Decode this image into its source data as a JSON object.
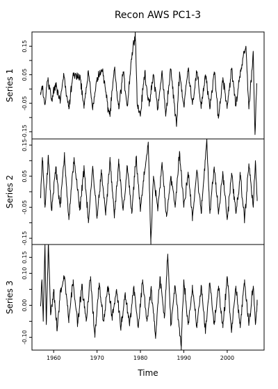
{
  "chart_data": {
    "type": "line",
    "title": "Recon AWS PC1-3",
    "xlabel": "Time",
    "xlim": [
      1955,
      2008.5
    ],
    "x_ticks": [
      1960,
      1970,
      1980,
      1990,
      2000
    ],
    "x_tick_labels": [
      "1960",
      "1970",
      "1980",
      "1990",
      "2000"
    ],
    "x_start": 1957.0,
    "x_step": 0.0833,
    "panels": [
      {
        "ylabel": "Series 1",
        "ylim": [
          -0.175,
          0.2
        ],
        "y_ticks": [
          -0.15,
          -0.1,
          -0.05,
          0,
          0.05,
          0.1,
          0.15
        ],
        "y_tick_labels": [
          "-0.15",
          "",
          "-0.05",
          "",
          "0.05",
          "",
          "0.15"
        ],
        "anchors": [
          {
            "x": 1957.0,
            "y": -0.02
          },
          {
            "x": 1957.3,
            "y": 0.01
          },
          {
            "x": 1958.0,
            "y": -0.055
          },
          {
            "x": 1958.7,
            "y": 0.04
          },
          {
            "x": 1959.5,
            "y": -0.04
          },
          {
            "x": 1960.5,
            "y": 0.02
          },
          {
            "x": 1961.5,
            "y": -0.05
          },
          {
            "x": 1962.3,
            "y": 0.055
          },
          {
            "x": 1963.5,
            "y": -0.07
          },
          {
            "x": 1964.5,
            "y": 0.05
          },
          {
            "x": 1966.0,
            "y": 0.04
          },
          {
            "x": 1967.0,
            "y": -0.06
          },
          {
            "x": 1968.0,
            "y": 0.06
          },
          {
            "x": 1969.0,
            "y": -0.07
          },
          {
            "x": 1970.0,
            "y": 0.04
          },
          {
            "x": 1971.3,
            "y": 0.065
          },
          {
            "x": 1972.5,
            "y": -0.065
          },
          {
            "x": 1973.0,
            "y": -0.09
          },
          {
            "x": 1974.0,
            "y": 0.07
          },
          {
            "x": 1975.0,
            "y": -0.07
          },
          {
            "x": 1976.0,
            "y": 0.06
          },
          {
            "x": 1977.0,
            "y": -0.06
          },
          {
            "x": 1977.8,
            "y": 0.09
          },
          {
            "x": 1978.8,
            "y": 0.2
          },
          {
            "x": 1979.3,
            "y": -0.06
          },
          {
            "x": 1980.0,
            "y": -0.09
          },
          {
            "x": 1981.0,
            "y": 0.06
          },
          {
            "x": 1982.0,
            "y": -0.06
          },
          {
            "x": 1983.0,
            "y": 0.05
          },
          {
            "x": 1984.0,
            "y": -0.07
          },
          {
            "x": 1985.0,
            "y": 0.06
          },
          {
            "x": 1985.8,
            "y": -0.09
          },
          {
            "x": 1987.0,
            "y": 0.07
          },
          {
            "x": 1988.3,
            "y": -0.13
          },
          {
            "x": 1989.0,
            "y": 0.06
          },
          {
            "x": 1990.0,
            "y": -0.06
          },
          {
            "x": 1991.0,
            "y": 0.07
          },
          {
            "x": 1992.0,
            "y": -0.05
          },
          {
            "x": 1993.0,
            "y": 0.06
          },
          {
            "x": 1994.0,
            "y": -0.06
          },
          {
            "x": 1995.0,
            "y": 0.05
          },
          {
            "x": 1996.0,
            "y": -0.07
          },
          {
            "x": 1997.0,
            "y": 0.06
          },
          {
            "x": 1998.0,
            "y": -0.1
          },
          {
            "x": 1999.0,
            "y": 0.04
          },
          {
            "x": 2000.0,
            "y": -0.06
          },
          {
            "x": 2001.0,
            "y": 0.07
          },
          {
            "x": 2002.0,
            "y": -0.06
          },
          {
            "x": 2003.0,
            "y": 0.06
          },
          {
            "x": 2004.3,
            "y": 0.15
          },
          {
            "x": 2005.0,
            "y": -0.07
          },
          {
            "x": 2006.0,
            "y": 0.13
          },
          {
            "x": 2006.4,
            "y": -0.16
          },
          {
            "x": 2006.8,
            "y": 0.02
          }
        ]
      },
      {
        "ylabel": "Series 2",
        "ylim": [
          -0.17,
          0.17
        ],
        "y_ticks": [
          -0.15,
          -0.1,
          -0.05,
          0,
          0.05,
          0.1,
          0.15
        ],
        "y_tick_labels": [
          "-0.15",
          "",
          "-0.05",
          "",
          "0.05",
          "",
          "0.15"
        ],
        "anchors": [
          {
            "x": 1957.0,
            "y": -0.02
          },
          {
            "x": 1957.4,
            "y": 0.11
          },
          {
            "x": 1958.0,
            "y": -0.05
          },
          {
            "x": 1958.8,
            "y": 0.11
          },
          {
            "x": 1959.5,
            "y": -0.06
          },
          {
            "x": 1960.5,
            "y": 0.08
          },
          {
            "x": 1961.5,
            "y": -0.05
          },
          {
            "x": 1962.5,
            "y": 0.12
          },
          {
            "x": 1963.5,
            "y": -0.09
          },
          {
            "x": 1964.7,
            "y": 0.11
          },
          {
            "x": 1966.0,
            "y": -0.06
          },
          {
            "x": 1967.0,
            "y": 0.08
          },
          {
            "x": 1968.0,
            "y": -0.1
          },
          {
            "x": 1969.0,
            "y": 0.08
          },
          {
            "x": 1970.0,
            "y": -0.08
          },
          {
            "x": 1971.0,
            "y": 0.06
          },
          {
            "x": 1972.0,
            "y": -0.07
          },
          {
            "x": 1973.0,
            "y": 0.1
          },
          {
            "x": 1974.0,
            "y": -0.08
          },
          {
            "x": 1975.0,
            "y": 0.09
          },
          {
            "x": 1976.0,
            "y": -0.06
          },
          {
            "x": 1977.0,
            "y": 0.08
          },
          {
            "x": 1978.0,
            "y": -0.07
          },
          {
            "x": 1979.0,
            "y": 0.11
          },
          {
            "x": 1980.0,
            "y": -0.06
          },
          {
            "x": 1981.0,
            "y": 0.07
          },
          {
            "x": 1981.8,
            "y": 0.16
          },
          {
            "x": 1982.4,
            "y": -0.17
          },
          {
            "x": 1983.0,
            "y": 0.05
          },
          {
            "x": 1984.0,
            "y": -0.06
          },
          {
            "x": 1985.0,
            "y": 0.09
          },
          {
            "x": 1986.0,
            "y": -0.08
          },
          {
            "x": 1987.0,
            "y": 0.05
          },
          {
            "x": 1988.0,
            "y": -0.05
          },
          {
            "x": 1989.0,
            "y": 0.13
          },
          {
            "x": 1990.0,
            "y": -0.05
          },
          {
            "x": 1991.0,
            "y": 0.06
          },
          {
            "x": 1992.0,
            "y": -0.08
          },
          {
            "x": 1993.0,
            "y": 0.07
          },
          {
            "x": 1994.0,
            "y": -0.07
          },
          {
            "x": 1995.3,
            "y": 0.17
          },
          {
            "x": 1996.0,
            "y": -0.07
          },
          {
            "x": 1997.0,
            "y": 0.08
          },
          {
            "x": 1998.0,
            "y": -0.07
          },
          {
            "x": 1999.0,
            "y": 0.06
          },
          {
            "x": 2000.0,
            "y": -0.09
          },
          {
            "x": 2001.0,
            "y": 0.06
          },
          {
            "x": 2002.0,
            "y": -0.07
          },
          {
            "x": 2003.0,
            "y": 0.05
          },
          {
            "x": 2004.0,
            "y": -0.09
          },
          {
            "x": 2005.0,
            "y": 0.09
          },
          {
            "x": 2006.0,
            "y": -0.05
          },
          {
            "x": 2006.5,
            "y": 0.1
          },
          {
            "x": 2006.9,
            "y": -0.03
          }
        ]
      },
      {
        "ylabel": "Series 3",
        "ylim": [
          -0.14,
          0.19
        ],
        "y_ticks": [
          -0.1,
          -0.05,
          0,
          0.05,
          0.1,
          0.15
        ],
        "y_tick_labels": [
          "-0.10",
          "",
          "0.00",
          "",
          "0.10",
          "0.15"
        ],
        "anchors": [
          {
            "x": 1957.0,
            "y": 0.0
          },
          {
            "x": 1957.3,
            "y": 0.08
          },
          {
            "x": 1957.6,
            "y": -0.05
          },
          {
            "x": 1958.0,
            "y": 0.19
          },
          {
            "x": 1958.3,
            "y": -0.06
          },
          {
            "x": 1958.8,
            "y": 0.19
          },
          {
            "x": 1959.3,
            "y": -0.03
          },
          {
            "x": 1960.0,
            "y": 0.05
          },
          {
            "x": 1960.8,
            "y": -0.08
          },
          {
            "x": 1961.5,
            "y": 0.04
          },
          {
            "x": 1962.5,
            "y": 0.09
          },
          {
            "x": 1963.5,
            "y": -0.04
          },
          {
            "x": 1964.5,
            "y": 0.08
          },
          {
            "x": 1965.5,
            "y": -0.06
          },
          {
            "x": 1966.5,
            "y": 0.06
          },
          {
            "x": 1967.5,
            "y": -0.05
          },
          {
            "x": 1968.5,
            "y": 0.09
          },
          {
            "x": 1969.5,
            "y": -0.1
          },
          {
            "x": 1970.5,
            "y": 0.07
          },
          {
            "x": 1971.5,
            "y": -0.05
          },
          {
            "x": 1972.5,
            "y": 0.06
          },
          {
            "x": 1973.5,
            "y": -0.04
          },
          {
            "x": 1974.5,
            "y": 0.05
          },
          {
            "x": 1975.5,
            "y": -0.07
          },
          {
            "x": 1976.5,
            "y": 0.04
          },
          {
            "x": 1977.5,
            "y": -0.06
          },
          {
            "x": 1978.5,
            "y": 0.06
          },
          {
            "x": 1979.5,
            "y": -0.07
          },
          {
            "x": 1980.5,
            "y": 0.08
          },
          {
            "x": 1981.5,
            "y": -0.05
          },
          {
            "x": 1982.5,
            "y": 0.05
          },
          {
            "x": 1983.5,
            "y": -0.1
          },
          {
            "x": 1984.5,
            "y": 0.09
          },
          {
            "x": 1985.5,
            "y": -0.04
          },
          {
            "x": 1986.3,
            "y": 0.16
          },
          {
            "x": 1987.0,
            "y": -0.06
          },
          {
            "x": 1988.0,
            "y": 0.06
          },
          {
            "x": 1988.8,
            "y": -0.05
          },
          {
            "x": 1989.4,
            "y": -0.13
          },
          {
            "x": 1990.0,
            "y": 0.08
          },
          {
            "x": 1991.0,
            "y": -0.06
          },
          {
            "x": 1992.0,
            "y": 0.05
          },
          {
            "x": 1993.0,
            "y": -0.07
          },
          {
            "x": 1994.0,
            "y": 0.06
          },
          {
            "x": 1995.0,
            "y": -0.08
          },
          {
            "x": 1996.0,
            "y": 0.07
          },
          {
            "x": 1997.0,
            "y": -0.06
          },
          {
            "x": 1998.0,
            "y": 0.06
          },
          {
            "x": 1999.0,
            "y": -0.07
          },
          {
            "x": 2000.0,
            "y": 0.09
          },
          {
            "x": 2001.0,
            "y": -0.08
          },
          {
            "x": 2002.0,
            "y": 0.06
          },
          {
            "x": 2003.0,
            "y": -0.07
          },
          {
            "x": 2004.0,
            "y": 0.08
          },
          {
            "x": 2005.0,
            "y": -0.06
          },
          {
            "x": 2006.0,
            "y": 0.06
          },
          {
            "x": 2006.5,
            "y": -0.06
          },
          {
            "x": 2006.9,
            "y": 0.0
          }
        ]
      }
    ]
  }
}
